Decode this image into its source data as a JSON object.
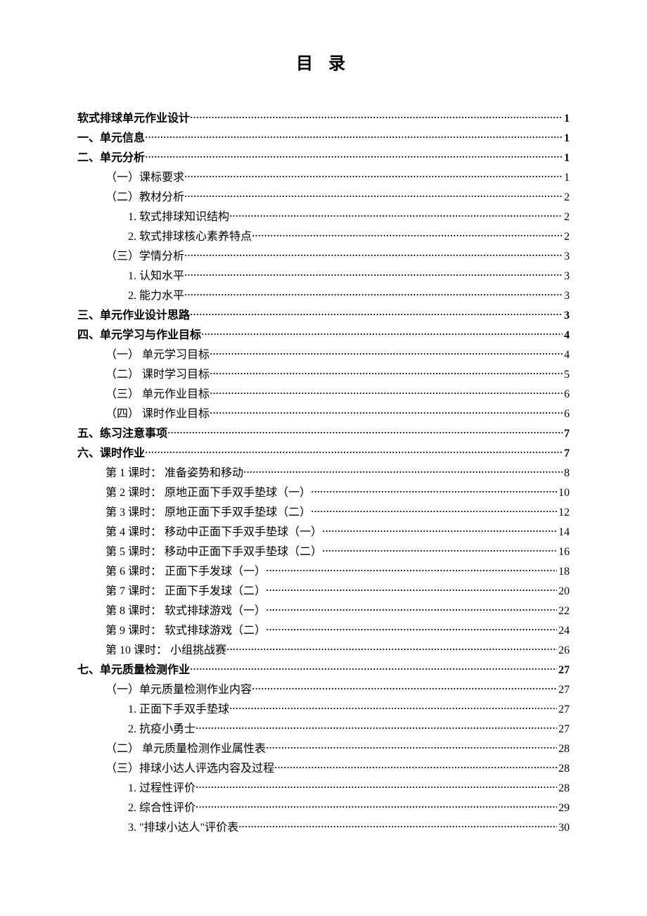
{
  "title": "目 录",
  "entries": [
    {
      "label": "软式排球单元作业设计",
      "page": "1",
      "indent": 0,
      "bold": true
    },
    {
      "label": "一、单元信息",
      "page": "1",
      "indent": 0,
      "bold": true
    },
    {
      "label": "二、单元分析",
      "page": "1",
      "indent": 0,
      "bold": true
    },
    {
      "label": "（一）课标要求",
      "page": "1",
      "indent": 1,
      "bold": false
    },
    {
      "label": "（二）教材分析",
      "page": "2",
      "indent": 1,
      "bold": false
    },
    {
      "label": "1. 软式排球知识结构",
      "page": "2",
      "indent": 2,
      "bold": false
    },
    {
      "label": "2. 软式排球核心素养特点",
      "page": "2",
      "indent": 2,
      "bold": false
    },
    {
      "label": "（三）学情分析",
      "page": "3",
      "indent": 1,
      "bold": false
    },
    {
      "label": "1. 认知水平",
      "page": "3",
      "indent": 2,
      "bold": false
    },
    {
      "label": "2. 能力水平",
      "page": "3",
      "indent": 2,
      "bold": false
    },
    {
      "label": "三、单元作业设计思路",
      "page": "3",
      "indent": 0,
      "bold": true
    },
    {
      "label": "四、单元学习与作业目标",
      "page": "4",
      "indent": 0,
      "bold": true
    },
    {
      "label": "（一） 单元学习目标",
      "page": "4",
      "indent": 1,
      "bold": false
    },
    {
      "label": "（二） 课时学习目标",
      "page": "5",
      "indent": 1,
      "bold": false
    },
    {
      "label": "（三） 单元作业目标",
      "page": "6",
      "indent": 1,
      "bold": false
    },
    {
      "label": "（四） 课时作业目标",
      "page": "6",
      "indent": 1,
      "bold": false
    },
    {
      "label": "五、练习注意事项",
      "page": "7",
      "indent": 0,
      "bold": true
    },
    {
      "label": "六、课时作业",
      "page": "7",
      "indent": 0,
      "bold": true
    },
    {
      "label": "第 1 课时： 准备姿势和移动",
      "page": "8",
      "indent": 1,
      "bold": false
    },
    {
      "label": "第 2 课时： 原地正面下手双手垫球（一）",
      "page": "10",
      "indent": 1,
      "bold": false
    },
    {
      "label": "第 3 课时： 原地正面下手双手垫球（二）",
      "page": "12",
      "indent": 1,
      "bold": false
    },
    {
      "label": "第 4 课时： 移动中正面下手双手垫球（一）",
      "page": "14",
      "indent": 1,
      "bold": false
    },
    {
      "label": "第 5 课时： 移动中正面下手双手垫球（二）",
      "page": "16",
      "indent": 1,
      "bold": false
    },
    {
      "label": "第 6 课时： 正面下手发球（一）",
      "page": "18",
      "indent": 1,
      "bold": false
    },
    {
      "label": "第 7 课时： 正面下手发球（二）",
      "page": "20",
      "indent": 1,
      "bold": false
    },
    {
      "label": "第 8 课时： 软式排球游戏（一）",
      "page": "22",
      "indent": 1,
      "bold": false
    },
    {
      "label": "第 9 课时： 软式排球游戏（二）",
      "page": "24",
      "indent": 1,
      "bold": false
    },
    {
      "label": "第 10 课时：  小组挑战赛",
      "page": "26",
      "indent": 1,
      "bold": false
    },
    {
      "label": "七、单元质量检测作业",
      "page": "27",
      "indent": 0,
      "bold": true
    },
    {
      "label": "（一）单元质量检测作业内容",
      "page": "27",
      "indent": 1,
      "bold": false
    },
    {
      "label": "1. 正面下手双手垫球",
      "page": "27",
      "indent": 2,
      "bold": false
    },
    {
      "label": "2. 抗疫小勇士",
      "page": "27",
      "indent": 2,
      "bold": false
    },
    {
      "label": "（二） 单元质量检测作业属性表",
      "page": "28",
      "indent": 1,
      "bold": false
    },
    {
      "label": "（三）排球小达人评选内容及过程",
      "page": "28",
      "indent": 1,
      "bold": false
    },
    {
      "label": "1. 过程性评价",
      "page": "28",
      "indent": 2,
      "bold": false
    },
    {
      "label": "2. 综合性评价",
      "page": "29",
      "indent": 2,
      "bold": false
    },
    {
      "label": "3. \"排球小达人\"评价表",
      "page": "30",
      "indent": 2,
      "bold": false
    }
  ]
}
